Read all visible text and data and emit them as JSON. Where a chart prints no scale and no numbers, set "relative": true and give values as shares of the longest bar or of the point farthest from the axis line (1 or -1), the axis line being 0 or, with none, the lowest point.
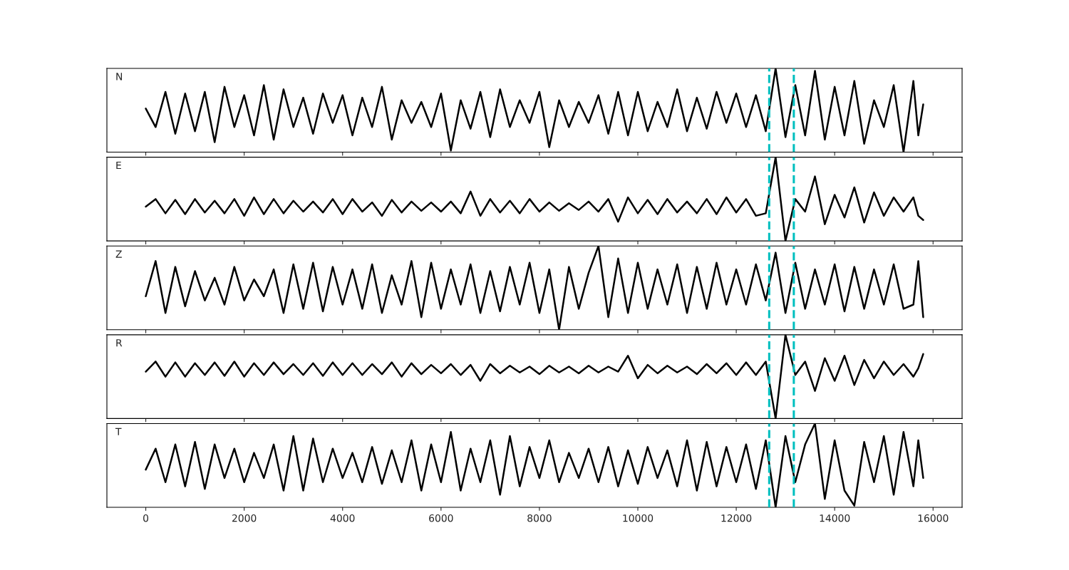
{
  "chart_data": [
    {
      "type": "line",
      "annotations": [
        "N"
      ],
      "relative": true,
      "xlim": [
        -790,
        16590
      ],
      "xticks": [
        0,
        2000,
        4000,
        6000,
        8000,
        10000,
        12000,
        14000,
        16000
      ],
      "tick_labels": false,
      "x": [
        0,
        200,
        400,
        600,
        800,
        1000,
        1200,
        1400,
        1600,
        1800,
        2000,
        2200,
        2400,
        2600,
        2800,
        3000,
        3200,
        3400,
        3600,
        3800,
        4000,
        4200,
        4400,
        4600,
        4800,
        5000,
        5200,
        5400,
        5600,
        5800,
        6000,
        6200,
        6400,
        6600,
        6800,
        7000,
        7200,
        7400,
        7600,
        7800,
        8000,
        8200,
        8400,
        8600,
        8800,
        9000,
        9200,
        9400,
        9600,
        9800,
        10000,
        10200,
        10400,
        10600,
        10800,
        11000,
        11200,
        11400,
        11600,
        11800,
        12000,
        12200,
        12400,
        12600,
        12800,
        13000,
        13200,
        13400,
        13600,
        13800,
        14000,
        14200,
        14400,
        14600,
        14800,
        15000,
        15200,
        15400,
        15600,
        15700,
        15800
      ],
      "series": [
        {
          "color": "#000000",
          "values": [
            0.52,
            0.3,
            0.72,
            0.22,
            0.7,
            0.25,
            0.72,
            0.12,
            0.78,
            0.3,
            0.68,
            0.2,
            0.8,
            0.15,
            0.75,
            0.3,
            0.65,
            0.22,
            0.7,
            0.35,
            0.68,
            0.2,
            0.65,
            0.3,
            0.78,
            0.15,
            0.62,
            0.35,
            0.6,
            0.3,
            0.7,
            0.02,
            0.62,
            0.28,
            0.72,
            0.18,
            0.75,
            0.3,
            0.62,
            0.35,
            0.72,
            0.06,
            0.62,
            0.3,
            0.6,
            0.35,
            0.68,
            0.22,
            0.72,
            0.2,
            0.72,
            0.25,
            0.6,
            0.3,
            0.75,
            0.25,
            0.65,
            0.28,
            0.72,
            0.35,
            0.7,
            0.3,
            0.68,
            0.25,
            1.0,
            0.18,
            0.8,
            0.2,
            0.97,
            0.15,
            0.78,
            0.2,
            0.85,
            0.1,
            0.62,
            0.3,
            0.8,
            0.0,
            0.85,
            0.2,
            0.57
          ]
        }
      ],
      "ref_lines": [
        {
          "axis": "x",
          "value": 12670,
          "color": "#00bfbf",
          "line_style": "dashed"
        },
        {
          "axis": "x",
          "value": 13170,
          "color": "#00bfbf",
          "line_style": "dashed"
        }
      ]
    },
    {
      "type": "line",
      "annotations": [
        "E"
      ],
      "relative": true,
      "xlim": [
        -790,
        16590
      ],
      "xticks": [
        0,
        2000,
        4000,
        6000,
        8000,
        10000,
        12000,
        14000,
        16000
      ],
      "tick_labels": false,
      "x": [
        0,
        200,
        400,
        600,
        800,
        1000,
        1200,
        1400,
        1600,
        1800,
        2000,
        2200,
        2400,
        2600,
        2800,
        3000,
        3200,
        3400,
        3600,
        3800,
        4000,
        4200,
        4400,
        4600,
        4800,
        5000,
        5200,
        5400,
        5600,
        5800,
        6000,
        6200,
        6400,
        6600,
        6800,
        7000,
        7200,
        7400,
        7600,
        7800,
        8000,
        8200,
        8400,
        8600,
        8800,
        9000,
        9200,
        9400,
        9600,
        9800,
        10000,
        10200,
        10400,
        10600,
        10800,
        11000,
        11200,
        11400,
        11600,
        11800,
        12000,
        12200,
        12400,
        12600,
        12800,
        13000,
        13200,
        13400,
        13600,
        13800,
        14000,
        14200,
        14400,
        14600,
        14800,
        15000,
        15200,
        15400,
        15600,
        15700,
        15800
      ],
      "series": [
        {
          "color": "#000000",
          "values": [
            0.41,
            0.5,
            0.33,
            0.49,
            0.32,
            0.5,
            0.34,
            0.48,
            0.33,
            0.5,
            0.3,
            0.52,
            0.32,
            0.5,
            0.33,
            0.48,
            0.35,
            0.47,
            0.34,
            0.5,
            0.32,
            0.5,
            0.35,
            0.46,
            0.3,
            0.49,
            0.34,
            0.47,
            0.36,
            0.46,
            0.35,
            0.47,
            0.33,
            0.59,
            0.3,
            0.5,
            0.34,
            0.48,
            0.33,
            0.5,
            0.35,
            0.46,
            0.36,
            0.45,
            0.37,
            0.47,
            0.35,
            0.5,
            0.23,
            0.52,
            0.33,
            0.49,
            0.32,
            0.5,
            0.34,
            0.47,
            0.33,
            0.5,
            0.32,
            0.52,
            0.34,
            0.5,
            0.3,
            0.33,
            1.0,
            0.0,
            0.5,
            0.35,
            0.77,
            0.2,
            0.55,
            0.28,
            0.64,
            0.22,
            0.58,
            0.3,
            0.52,
            0.35,
            0.52,
            0.3,
            0.25
          ]
        }
      ],
      "ref_lines": [
        {
          "axis": "x",
          "value": 12670,
          "color": "#00bfbf",
          "line_style": "dashed"
        },
        {
          "axis": "x",
          "value": 13170,
          "color": "#00bfbf",
          "line_style": "dashed"
        }
      ]
    },
    {
      "type": "line",
      "annotations": [
        "Z"
      ],
      "relative": true,
      "xlim": [
        -790,
        16590
      ],
      "xticks": [
        0,
        2000,
        4000,
        6000,
        8000,
        10000,
        12000,
        14000,
        16000
      ],
      "tick_labels": false,
      "x": [
        0,
        200,
        400,
        600,
        800,
        1000,
        1200,
        1400,
        1600,
        1800,
        2000,
        2200,
        2400,
        2600,
        2800,
        3000,
        3200,
        3400,
        3600,
        3800,
        4000,
        4200,
        4400,
        4600,
        4800,
        5000,
        5200,
        5400,
        5600,
        5800,
        6000,
        6200,
        6400,
        6600,
        6800,
        7000,
        7200,
        7400,
        7600,
        7800,
        8000,
        8200,
        8400,
        8600,
        8800,
        9000,
        9200,
        9400,
        9600,
        9800,
        10000,
        10200,
        10400,
        10600,
        10800,
        11000,
        11200,
        11400,
        11600,
        11800,
        12000,
        12200,
        12400,
        12600,
        12800,
        13000,
        13200,
        13400,
        13600,
        13800,
        14000,
        14200,
        14400,
        14600,
        14800,
        15000,
        15200,
        15400,
        15600,
        15700,
        15800
      ],
      "series": [
        {
          "color": "#000000",
          "values": [
            0.4,
            0.82,
            0.2,
            0.75,
            0.28,
            0.7,
            0.35,
            0.62,
            0.3,
            0.75,
            0.35,
            0.6,
            0.4,
            0.72,
            0.2,
            0.78,
            0.25,
            0.8,
            0.22,
            0.75,
            0.3,
            0.72,
            0.25,
            0.78,
            0.2,
            0.65,
            0.3,
            0.82,
            0.15,
            0.8,
            0.25,
            0.72,
            0.3,
            0.78,
            0.2,
            0.7,
            0.22,
            0.75,
            0.3,
            0.8,
            0.2,
            0.72,
            0.0,
            0.75,
            0.25,
            0.68,
            1.0,
            0.15,
            0.85,
            0.2,
            0.8,
            0.25,
            0.72,
            0.3,
            0.78,
            0.2,
            0.75,
            0.25,
            0.8,
            0.3,
            0.72,
            0.3,
            0.78,
            0.35,
            0.92,
            0.2,
            0.8,
            0.25,
            0.72,
            0.3,
            0.78,
            0.22,
            0.75,
            0.25,
            0.72,
            0.3,
            0.78,
            0.25,
            0.3,
            0.82,
            0.15
          ]
        }
      ],
      "ref_lines": [
        {
          "axis": "x",
          "value": 12670,
          "color": "#00bfbf",
          "line_style": "dashed"
        },
        {
          "axis": "x",
          "value": 13170,
          "color": "#00bfbf",
          "line_style": "dashed"
        }
      ]
    },
    {
      "type": "line",
      "annotations": [
        "R"
      ],
      "relative": true,
      "xlim": [
        -790,
        16590
      ],
      "xticks": [
        0,
        2000,
        4000,
        6000,
        8000,
        10000,
        12000,
        14000,
        16000
      ],
      "tick_labels": false,
      "x": [
        0,
        200,
        400,
        600,
        800,
        1000,
        1200,
        1400,
        1600,
        1800,
        2000,
        2200,
        2400,
        2600,
        2800,
        3000,
        3200,
        3400,
        3600,
        3800,
        4000,
        4200,
        4400,
        4600,
        4800,
        5000,
        5200,
        5400,
        5600,
        5800,
        6000,
        6200,
        6400,
        6600,
        6800,
        7000,
        7200,
        7400,
        7600,
        7800,
        8000,
        8200,
        8400,
        8600,
        8800,
        9000,
        9200,
        9400,
        9600,
        9800,
        10000,
        10200,
        10400,
        10600,
        10800,
        11000,
        11200,
        11400,
        11600,
        11800,
        12000,
        12200,
        12400,
        12600,
        12800,
        13000,
        13200,
        13400,
        13600,
        13800,
        14000,
        14200,
        14400,
        14600,
        14800,
        15000,
        15200,
        15400,
        15600,
        15700,
        15800
      ],
      "series": [
        {
          "color": "#000000",
          "values": [
            0.56,
            0.68,
            0.5,
            0.67,
            0.5,
            0.66,
            0.52,
            0.67,
            0.51,
            0.68,
            0.5,
            0.66,
            0.52,
            0.67,
            0.53,
            0.65,
            0.52,
            0.66,
            0.51,
            0.67,
            0.52,
            0.66,
            0.52,
            0.65,
            0.53,
            0.67,
            0.5,
            0.66,
            0.53,
            0.64,
            0.54,
            0.65,
            0.52,
            0.64,
            0.45,
            0.65,
            0.54,
            0.63,
            0.55,
            0.62,
            0.53,
            0.63,
            0.55,
            0.62,
            0.54,
            0.63,
            0.55,
            0.62,
            0.56,
            0.75,
            0.48,
            0.64,
            0.54,
            0.63,
            0.55,
            0.62,
            0.53,
            0.65,
            0.54,
            0.66,
            0.52,
            0.67,
            0.52,
            0.68,
            0.0,
            1.0,
            0.52,
            0.68,
            0.33,
            0.72,
            0.45,
            0.75,
            0.4,
            0.7,
            0.48,
            0.68,
            0.52,
            0.65,
            0.5,
            0.6,
            0.77
          ]
        }
      ],
      "ref_lines": [
        {
          "axis": "x",
          "value": 12670,
          "color": "#00bfbf",
          "line_style": "dashed"
        },
        {
          "axis": "x",
          "value": 13170,
          "color": "#00bfbf",
          "line_style": "dashed"
        }
      ]
    },
    {
      "type": "line",
      "annotations": [
        "T"
      ],
      "relative": true,
      "xlim": [
        -790,
        16590
      ],
      "xticks": [
        0,
        2000,
        4000,
        6000,
        8000,
        10000,
        12000,
        14000,
        16000
      ],
      "tick_labels": "x",
      "x": [
        0,
        200,
        400,
        600,
        800,
        1000,
        1200,
        1400,
        1600,
        1800,
        2000,
        2200,
        2400,
        2600,
        2800,
        3000,
        3200,
        3400,
        3600,
        3800,
        4000,
        4200,
        4400,
        4600,
        4800,
        5000,
        5200,
        5400,
        5600,
        5800,
        6000,
        6200,
        6400,
        6600,
        6800,
        7000,
        7200,
        7400,
        7600,
        7800,
        8000,
        8200,
        8400,
        8600,
        8800,
        9000,
        9200,
        9400,
        9600,
        9800,
        10000,
        10200,
        10400,
        10600,
        10800,
        11000,
        11200,
        11400,
        11600,
        11800,
        12000,
        12200,
        12400,
        12600,
        12800,
        13000,
        13200,
        13400,
        13600,
        13800,
        14000,
        14200,
        14400,
        14600,
        14800,
        15000,
        15200,
        15400,
        15600,
        15700,
        15800
      ],
      "series": [
        {
          "color": "#000000",
          "values": [
            0.45,
            0.7,
            0.3,
            0.75,
            0.25,
            0.78,
            0.22,
            0.75,
            0.35,
            0.7,
            0.3,
            0.65,
            0.35,
            0.75,
            0.2,
            0.85,
            0.2,
            0.82,
            0.3,
            0.7,
            0.35,
            0.65,
            0.3,
            0.72,
            0.28,
            0.68,
            0.3,
            0.8,
            0.2,
            0.75,
            0.3,
            0.9,
            0.2,
            0.7,
            0.3,
            0.8,
            0.15,
            0.85,
            0.25,
            0.72,
            0.35,
            0.8,
            0.3,
            0.65,
            0.35,
            0.7,
            0.3,
            0.72,
            0.25,
            0.68,
            0.28,
            0.72,
            0.35,
            0.68,
            0.25,
            0.8,
            0.2,
            0.78,
            0.25,
            0.72,
            0.3,
            0.75,
            0.22,
            0.8,
            0.0,
            0.85,
            0.3,
            0.75,
            1.0,
            0.1,
            0.8,
            0.2,
            0.02,
            0.78,
            0.3,
            0.85,
            0.15,
            0.9,
            0.25,
            0.8,
            0.35
          ]
        }
      ],
      "ref_lines": [
        {
          "axis": "x",
          "value": 12670,
          "color": "#00bfbf",
          "line_style": "dashed"
        },
        {
          "axis": "x",
          "value": 13170,
          "color": "#00bfbf",
          "line_style": "dashed"
        }
      ]
    }
  ]
}
